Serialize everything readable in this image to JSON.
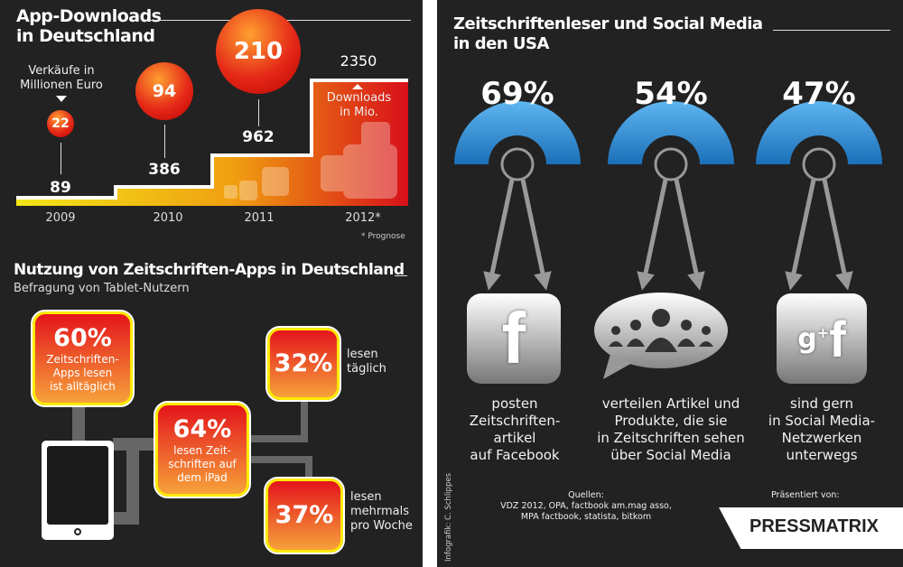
{
  "downloads": {
    "title_line1": "App-Downloads",
    "title_line2": "in Deutschland",
    "sales_label_line1": "Verkäufe in",
    "sales_label_line2": "Millionen Euro",
    "downloads_label_line1": "Downloads",
    "downloads_label_line2": "in Mio.",
    "footnote": "* Prognose",
    "years": [
      {
        "year": "2009",
        "sales": "22",
        "downloads": "89"
      },
      {
        "year": "2010",
        "sales": "94",
        "downloads": "386"
      },
      {
        "year": "2011",
        "sales": "210",
        "downloads": "962"
      },
      {
        "year": "2012*",
        "downloads": "2350"
      }
    ]
  },
  "usage": {
    "title": "Nutzung von Zeitschriften-Apps in Deutschland",
    "subtitle": "Befragung von Tablet-Nutzern",
    "box60": {
      "value": "60%",
      "l1": "Zeitschriften-",
      "l2": "Apps lesen",
      "l3": "ist alltäglich"
    },
    "box64": {
      "value": "64%",
      "l1": "lesen Zeit-",
      "l2": "schriften auf",
      "l3": "dem iPad"
    },
    "box32": {
      "value": "32%",
      "l1": "lesen",
      "l2": "täglich"
    },
    "box37": {
      "value": "37%",
      "l1": "lesen",
      "l2": "mehrmals",
      "l3": "pro Woche"
    }
  },
  "social": {
    "title_line1": "Zeitschriftenleser und Social Media",
    "title_line2": "in den USA",
    "items": [
      {
        "value": "69%",
        "l1": "posten",
        "l2": "Zeitschriften-",
        "l3": "artikel",
        "l4": "auf Facebook"
      },
      {
        "value": "54%",
        "l1": "verteilen Artikel und",
        "l2": "Produkte, die sie",
        "l3": "in Zeitschriften sehen",
        "l4": "über Social Media"
      },
      {
        "value": "47%",
        "l1": "sind gern",
        "l2": "in Social Media-",
        "l3": "Netzwerken",
        "l4": "unterwegs"
      }
    ],
    "sources_label": "Quellen:",
    "sources_l1": "VDZ 2012, OPA, factbook am.mag asso,",
    "sources_l2": "MPA factbook, statista, bitkom",
    "credit": "Infografik: C. Schlippes",
    "presented_by": "Präsentiert von:",
    "logo": "PRESSMATRIX",
    "accent": "#2a8fd8"
  }
}
